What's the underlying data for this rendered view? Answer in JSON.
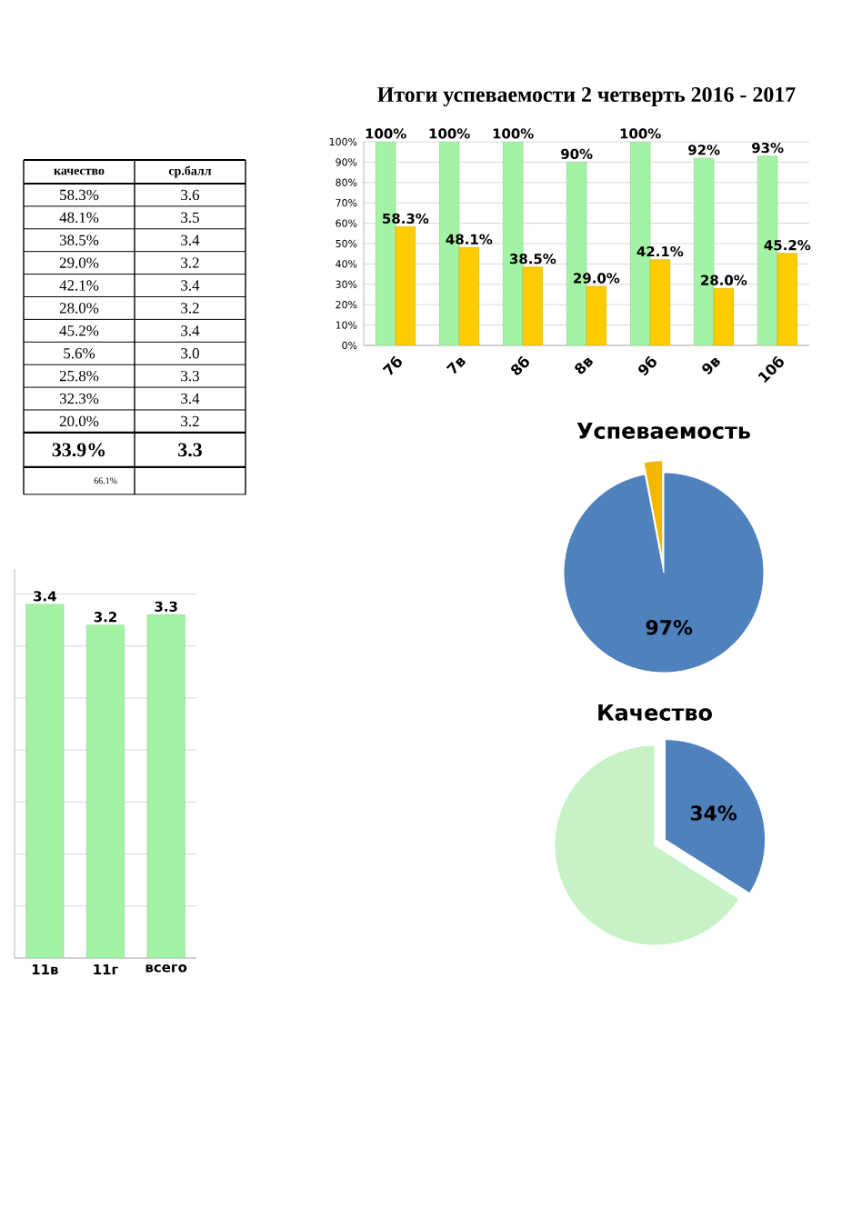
{
  "chart_data": [
    {
      "type": "bar",
      "title": "Итоги успеваемости 2 четверть 2016 - 2017",
      "categories": [
        "7б",
        "7в",
        "8б",
        "8в",
        "9б",
        "9в",
        "10б"
      ],
      "series": [
        {
          "color": "#a4f2a4",
          "values": [
            100,
            100,
            100,
            90,
            100,
            92,
            93
          ],
          "value_labels": [
            "100%",
            "100%",
            "100%",
            "90%",
            "100%",
            "92%",
            "93%"
          ]
        },
        {
          "color": "#ffcc00",
          "values": [
            58.3,
            48.1,
            38.5,
            29.0,
            42.1,
            28.0,
            45.2
          ],
          "value_labels": [
            "58.3%",
            "48.1%",
            "38.5%",
            "29.0%",
            "42.1%",
            "28.0%",
            "45.2%"
          ]
        }
      ],
      "ylim": [
        0,
        100
      ],
      "yticks": [
        {
          "value": 0,
          "label": "0%"
        },
        {
          "value": 10,
          "label": "10%"
        },
        {
          "value": 20,
          "label": "20%"
        },
        {
          "value": 30,
          "label": "30%"
        },
        {
          "value": 40,
          "label": "40%"
        },
        {
          "value": 50,
          "label": "50%"
        },
        {
          "value": 60,
          "label": "60%"
        },
        {
          "value": 70,
          "label": "70%"
        },
        {
          "value": 80,
          "label": "80%"
        },
        {
          "value": 90,
          "label": "90%"
        },
        {
          "value": 100,
          "label": "100%"
        }
      ],
      "grid": "y"
    },
    {
      "type": "other",
      "categories": [
        "качество",
        "ср.балл"
      ],
      "cell_labels": [
        [
          "58.3%",
          "3.6"
        ],
        [
          "48.1%",
          "3.5"
        ],
        [
          "38.5%",
          "3.4"
        ],
        [
          "29.0%",
          "3.2"
        ],
        [
          "42.1%",
          "3.4"
        ],
        [
          "28.0%",
          "3.2"
        ],
        [
          "45.2%",
          "3.4"
        ],
        [
          "5.6%",
          "3.0"
        ],
        [
          "25.8%",
          "3.3"
        ],
        [
          "32.3%",
          "3.4"
        ],
        [
          "20.0%",
          "3.2"
        ],
        [
          "33.9%",
          "3.3"
        ],
        [
          "66.1%",
          null
        ]
      ]
    },
    {
      "type": "pie",
      "title": "Успеваемость",
      "categories": [
        null,
        null
      ],
      "values": [
        97,
        3
      ],
      "colors": [
        "#4f81bd",
        "#f2b705"
      ],
      "value_labels": [
        "97%",
        null
      ]
    },
    {
      "type": "bar",
      "categories": [
        "11в",
        "11г",
        "всего"
      ],
      "values": [
        3.4,
        3.2,
        3.3
      ],
      "color": "#a4f2a4",
      "data_labels": true,
      "grid": "y",
      "tick_labels": "x"
    },
    {
      "type": "pie",
      "title": "Качество",
      "categories": [
        null,
        null
      ],
      "values": [
        34,
        66
      ],
      "colors": [
        "#4f81bd",
        "#c6f2c6"
      ],
      "value_labels": [
        "34%",
        null
      ]
    }
  ]
}
